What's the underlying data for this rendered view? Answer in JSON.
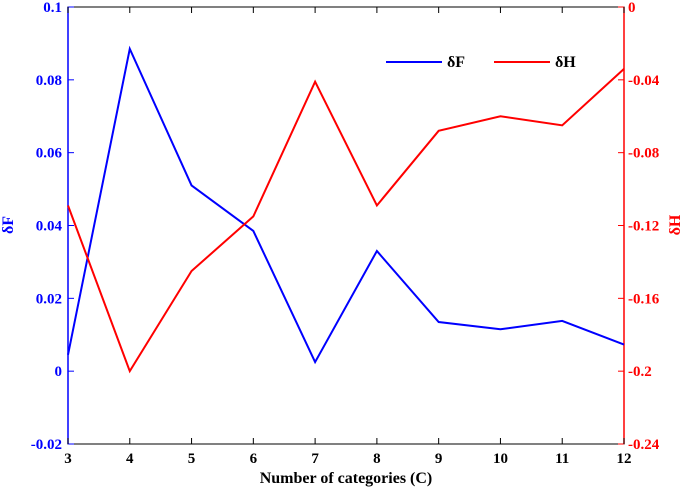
{
  "chart_data": {
    "type": "line",
    "xlabel": "Number of categories (C)",
    "x": [
      3,
      4,
      5,
      6,
      7,
      8,
      9,
      10,
      11,
      12
    ],
    "xlim": [
      3,
      12
    ],
    "xticks": [
      "3",
      "4",
      "5",
      "6",
      "7",
      "8",
      "9",
      "10",
      "11",
      "12"
    ],
    "left_axis": {
      "label": "δF",
      "color": "#0000ff",
      "ylim": [
        -0.02,
        0.1
      ],
      "ticks": [
        "-0.02",
        "0",
        "0.02",
        "0.04",
        "0.06",
        "0.08",
        "0.1"
      ]
    },
    "right_axis": {
      "label": "δH",
      "color": "#ff0000",
      "ylim": [
        -0.24,
        0
      ],
      "ticks": [
        "-0.24",
        "-0.2",
        "-0.16",
        "-0.12",
        "-0.08",
        "-0.04",
        "0"
      ]
    },
    "series": [
      {
        "name": "δF",
        "axis": "left",
        "color": "#0000ff",
        "values": [
          0.0045,
          0.0885,
          0.051,
          0.0385,
          0.0025,
          0.033,
          0.0135,
          0.0115,
          0.0138,
          0.0073
        ]
      },
      {
        "name": "δH",
        "axis": "right",
        "color": "#ff0000",
        "values": [
          -0.109,
          -0.2,
          -0.145,
          -0.115,
          -0.041,
          -0.109,
          -0.068,
          -0.06,
          -0.065,
          -0.034
        ]
      }
    ],
    "legend": {
      "position": "top-right"
    },
    "grid": false
  }
}
